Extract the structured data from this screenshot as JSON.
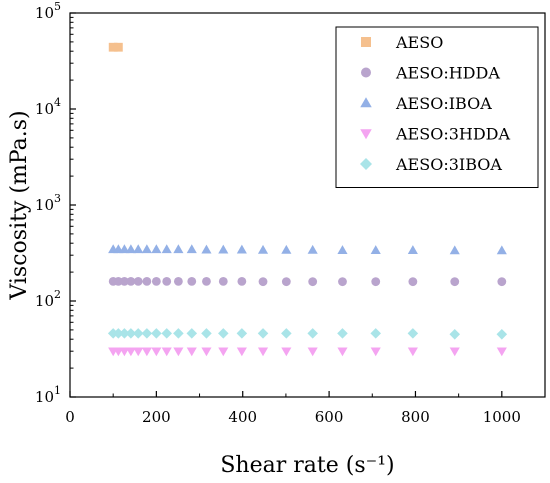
{
  "chart_data": {
    "type": "scatter",
    "title": "",
    "xlabel": "Shear rate (s⁻¹)",
    "ylabel": "Viscosity (mPa.s)",
    "xlim": [
      0,
      1100
    ],
    "ylim": [
      10,
      100000
    ],
    "yscale": "log",
    "x_ticks": [
      0,
      200,
      400,
      600,
      800,
      1000
    ],
    "x_tick_labels": [
      "0",
      "200",
      "400",
      "600",
      "800",
      "1000"
    ],
    "y_ticks": [
      10,
      100,
      1000,
      10000,
      100000
    ],
    "y_tick_base": "10",
    "y_tick_exponents": [
      "1",
      "2",
      "3",
      "4",
      "5"
    ],
    "grid": false,
    "legend_position": "top-right",
    "series": [
      {
        "name": "AESO",
        "marker": "square",
        "color": "#F5C08E",
        "x": [
          100,
          112
        ],
        "y": [
          44000,
          44000
        ]
      },
      {
        "name": "AESO:HDDA",
        "marker": "circle",
        "color": "#B9A4CD",
        "x": [
          100,
          112,
          126,
          141,
          158,
          178,
          200,
          224,
          251,
          282,
          316,
          355,
          398,
          447,
          501,
          562,
          631,
          708,
          794,
          891,
          1000
        ],
        "y": [
          160,
          160,
          160,
          160,
          160,
          160,
          160,
          160,
          160,
          160,
          160,
          160,
          160,
          159,
          159,
          159,
          159,
          159,
          159,
          159,
          159
        ]
      },
      {
        "name": "AESO:IBOA",
        "marker": "triangle-up",
        "color": "#93B0E6",
        "x": [
          100,
          112,
          126,
          141,
          158,
          178,
          200,
          224,
          251,
          282,
          316,
          355,
          398,
          447,
          501,
          562,
          631,
          708,
          794,
          891,
          1000
        ],
        "y": [
          345,
          345,
          345,
          345,
          345,
          345,
          345,
          345,
          345,
          345,
          342,
          342,
          342,
          340,
          340,
          340,
          338,
          338,
          338,
          336,
          336
        ]
      },
      {
        "name": "AESO:3HDDA",
        "marker": "triangle-down",
        "color": "#F4A4F1",
        "x": [
          100,
          112,
          126,
          141,
          158,
          178,
          200,
          224,
          251,
          282,
          316,
          355,
          398,
          447,
          501,
          562,
          631,
          708,
          794,
          891,
          1000
        ],
        "y": [
          30,
          30,
          30,
          30,
          30,
          30,
          30,
          30,
          30,
          30,
          30,
          30,
          30,
          30,
          30,
          30,
          30,
          30,
          30,
          30,
          30
        ]
      },
      {
        "name": "AESO:3IBOA",
        "marker": "diamond",
        "color": "#A9E4E8",
        "x": [
          100,
          112,
          126,
          141,
          158,
          178,
          200,
          224,
          251,
          282,
          316,
          355,
          398,
          447,
          501,
          562,
          631,
          708,
          794,
          891,
          1000
        ],
        "y": [
          46,
          46,
          46,
          46,
          46,
          46,
          46,
          46,
          46,
          46,
          46,
          46,
          46,
          46,
          46,
          46,
          46,
          46,
          46,
          45,
          45
        ]
      }
    ]
  }
}
